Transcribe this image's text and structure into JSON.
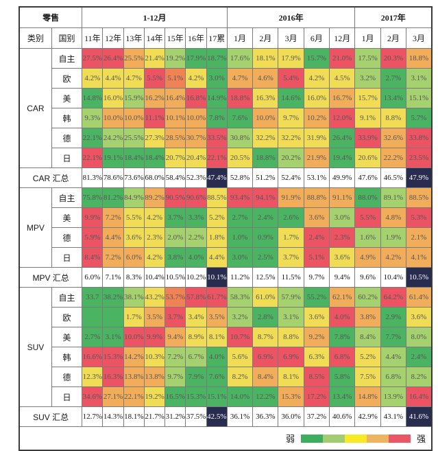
{
  "palette": {
    "g": "#4bb463",
    "lg": "#a5d16f",
    "y": "#f1dd55",
    "o": "#f2ad5b",
    "or": "#f08356",
    "r": "#ec5363",
    "dark": "#282c4e",
    "white": "#ffffff"
  },
  "legend": {
    "weak_label": "弱",
    "strong_label": "强",
    "colors": [
      "#3dae5d",
      "#a3cc72",
      "#f7ea25",
      "#efb45f",
      "#ea5766"
    ]
  },
  "chart_data": {
    "type": "heatmap",
    "title": "零售",
    "corner_label": "零售",
    "group_headers": [
      {
        "label": "零售",
        "span": 2
      },
      {
        "label": "1-12月",
        "span": 7
      },
      {
        "label": "2016年",
        "span": 5
      },
      {
        "label": "2017年",
        "span": 3
      }
    ],
    "sub_headers": [
      "类别",
      "国别",
      "11年",
      "12年",
      "13年",
      "14年",
      "15年",
      "16年",
      "17累",
      "1月",
      "2月",
      "3月",
      "6月",
      "12月",
      "1月",
      "2月",
      "3月"
    ],
    "groups": [
      {
        "name": "CAR",
        "rows": [
          {
            "label": "自主",
            "values": [
              "27.5%",
              "26.4%",
              "25.5%",
              "21.4%",
              "19.2%",
              "17.9%",
              "18.7%",
              "17.6%",
              "18.1%",
              "17.9%",
              "15.7%",
              "21.0%",
              "17.5%",
              "20.3%",
              "18.8%"
            ],
            "colors": [
              "r",
              "r",
              "o",
              "y",
              "lg",
              "g",
              "g",
              "lg",
              "y",
              "y",
              "g",
              "r",
              "lg",
              "r",
              "o"
            ]
          },
          {
            "label": "欧",
            "values": [
              "4.2%",
              "4.4%",
              "4.7%",
              "5.5%",
              "5.1%",
              "4.2%",
              "3.0%",
              "4.7%",
              "4.6%",
              "5.4%",
              "4.2%",
              "4.5%",
              "3.2%",
              "2.7%",
              "3.1%"
            ],
            "colors": [
              "y",
              "y",
              "y",
              "r",
              "or",
              "y",
              "g",
              "o",
              "o",
              "r",
              "y",
              "y",
              "lg",
              "g",
              "lg"
            ]
          },
          {
            "label": "美",
            "values": [
              "14.8%",
              "16.0%",
              "15.9%",
              "16.2%",
              "16.4%",
              "16.8%",
              "14.9%",
              "18.8%",
              "16.3%",
              "14.6%",
              "16.0%",
              "16.7%",
              "15.7%",
              "13.4%",
              "15.1%"
            ],
            "colors": [
              "g",
              "y",
              "lg",
              "o",
              "o",
              "r",
              "g",
              "r",
              "y",
              "g",
              "y",
              "o",
              "y",
              "g",
              "lg"
            ]
          },
          {
            "label": "韩",
            "values": [
              "9.3%",
              "10.0%",
              "10.0%",
              "11.1%",
              "10.1%",
              "10.0%",
              "7.8%",
              "7.6%",
              "10.0%",
              "9.7%",
              "10.2%",
              "12.0%",
              "9.1%",
              "8.8%",
              "5.7%"
            ],
            "colors": [
              "lg",
              "o",
              "o",
              "r",
              "o",
              "o",
              "g",
              "g",
              "o",
              "y",
              "o",
              "r",
              "y",
              "y",
              "g"
            ]
          },
          {
            "label": "德",
            "values": [
              "22.1%",
              "24.2%",
              "25.5%",
              "27.3%",
              "28.5%",
              "30.7%",
              "33.5%",
              "30.8%",
              "32.2%",
              "32.2%",
              "31.9%",
              "26.4%",
              "33.9%",
              "32.6%",
              "33.8%"
            ],
            "colors": [
              "g",
              "lg",
              "lg",
              "y",
              "o",
              "o",
              "r",
              "lg",
              "y",
              "y",
              "y",
              "g",
              "r",
              "o",
              "r"
            ]
          },
          {
            "label": "日",
            "values": [
              "22.1%",
              "19.1%",
              "18.4%",
              "18.4%",
              "20.7%",
              "20.4%",
              "22.1%",
              "20.5%",
              "18.8%",
              "20.2%",
              "21.9%",
              "19.4%",
              "20.6%",
              "22.2%",
              "23.5%"
            ],
            "colors": [
              "r",
              "g",
              "g",
              "g",
              "y",
              "y",
              "r",
              "y",
              "g",
              "lg",
              "o",
              "g",
              "y",
              "o",
              "r"
            ]
          }
        ],
        "total": {
          "label": "CAR 汇总",
          "values": [
            "81.3%",
            "78.6%",
            "73.6%",
            "68.0%",
            "58.4%",
            "52.3%",
            "47.4%",
            "52.8%",
            "51.2%",
            "52.4%",
            "53.1%",
            "49.9%",
            "47.6%",
            "46.5%",
            "47.9%"
          ],
          "dark_columns": [
            6,
            14
          ]
        }
      },
      {
        "name": "MPV",
        "rows": [
          {
            "label": "自主",
            "values": [
              "75.8%",
              "81.2%",
              "84.9%",
              "89.2%",
              "90.5%",
              "90.6%",
              "88.5%",
              "93.4%",
              "94.1%",
              "91.9%",
              "88.8%",
              "91.1%",
              "88.0%",
              "89.1%",
              "88.5%"
            ],
            "colors": [
              "g",
              "g",
              "lg",
              "o",
              "r",
              "r",
              "y",
              "r",
              "r",
              "o",
              "o",
              "o",
              "g",
              "lg",
              "o"
            ]
          },
          {
            "label": "美",
            "values": [
              "9.9%",
              "7.2%",
              "5.5%",
              "4.2%",
              "3.7%",
              "3.3%",
              "5.2%",
              "2.7%",
              "2.4%",
              "2.6%",
              "3.6%",
              "3.0%",
              "5.5%",
              "4.8%",
              "5.3%"
            ],
            "colors": [
              "r",
              "o",
              "y",
              "y",
              "g",
              "g",
              "y",
              "g",
              "g",
              "g",
              "o",
              "lg",
              "r",
              "o",
              "r"
            ]
          },
          {
            "label": "德",
            "values": [
              "5.9%",
              "4.4%",
              "3.6%",
              "2.3%",
              "2.0%",
              "2.2%",
              "1.8%",
              "1.0%",
              "0.9%",
              "1.7%",
              "2.4%",
              "2.3%",
              "1.6%",
              "1.9%",
              "2.1%"
            ],
            "colors": [
              "r",
              "o",
              "y",
              "y",
              "lg",
              "lg",
              "y",
              "g",
              "g",
              "y",
              "r",
              "r",
              "lg",
              "lg",
              "o"
            ]
          },
          {
            "label": "日",
            "values": [
              "8.4%",
              "7.2%",
              "6.0%",
              "4.2%",
              "3.8%",
              "4.0%",
              "4.4%",
              "3.0%",
              "2.5%",
              "3.7%",
              "5.1%",
              "3.6%",
              "4.9%",
              "4.2%",
              "4.1%"
            ],
            "colors": [
              "r",
              "o",
              "o",
              "y",
              "g",
              "g",
              "y",
              "g",
              "g",
              "y",
              "r",
              "y",
              "o",
              "o",
              "o"
            ]
          }
        ],
        "total": {
          "label": "MPV 汇总",
          "values": [
            "6.0%",
            "7.1%",
            "8.3%",
            "10.4%",
            "10.5%",
            "10.2%",
            "10.1%",
            "11.2%",
            "12.5%",
            "11.5%",
            "9.7%",
            "9.4%",
            "9.6%",
            "10.4%",
            "10.5%"
          ],
          "dark_columns": [
            6,
            14
          ]
        }
      },
      {
        "name": "SUV",
        "rows": [
          {
            "label": "自主",
            "values": [
              "33.7",
              "38.2%",
              "38.1%",
              "43.2%",
              "53.7%",
              "57.8%",
              "61.7%",
              "58.3%",
              "61.0%",
              "57.9%",
              "55.2%",
              "62.1%",
              "60.2%",
              "64.2%",
              "61.4%"
            ],
            "colors": [
              "g",
              "g",
              "lg",
              "y",
              "or",
              "r",
              "r",
              "lg",
              "y",
              "lg",
              "g",
              "o",
              "lg",
              "r",
              "o"
            ]
          },
          {
            "label": "欧",
            "values": [
              "",
              "",
              "1.7%",
              "3.5%",
              "3.7%",
              "3.4%",
              "3.5%",
              "3.2%",
              "2.8%",
              "3.1%",
              "3.6%",
              "4.0%",
              "3.8%",
              "2.9%",
              "3.6%"
            ],
            "colors": [
              "g",
              "g",
              "y",
              "o",
              "r",
              "y",
              "o",
              "lg",
              "g",
              "lg",
              "y",
              "r",
              "o",
              "g",
              "y"
            ]
          },
          {
            "label": "美",
            "values": [
              "2.7%",
              "3.1%",
              "10.0%",
              "9.9%",
              "9.4%",
              "8.9%",
              "8.1%",
              "10.7%",
              "8.7%",
              "8.8%",
              "9.2%",
              "7.8%",
              "8.4%",
              "7.7%",
              "8.0%"
            ],
            "colors": [
              "g",
              "g",
              "r",
              "r",
              "o",
              "y",
              "y",
              "r",
              "y",
              "y",
              "o",
              "g",
              "lg",
              "g",
              "lg"
            ]
          },
          {
            "label": "韩",
            "values": [
              "16.6%",
              "15.3%",
              "14.2%",
              "10.3%",
              "7.2%",
              "6.7%",
              "4.0%",
              "5.6%",
              "6.9%",
              "6.9%",
              "6.3%",
              "6.8%",
              "5.2%",
              "4.4%",
              "2.4%"
            ],
            "colors": [
              "r",
              "r",
              "o",
              "y",
              "lg",
              "lg",
              "g",
              "y",
              "r",
              "r",
              "y",
              "r",
              "y",
              "lg",
              "g"
            ]
          },
          {
            "label": "德",
            "values": [
              "12.3%",
              "16.3%",
              "13.8%",
              "13.8%",
              "9.7%",
              "7.9%",
              "7.6%",
              "8.2%",
              "8.4%",
              "8.1%",
              "8.5%",
              "5.8%",
              "7.5%",
              "6.8%",
              "8.2%"
            ],
            "colors": [
              "y",
              "r",
              "o",
              "o",
              "lg",
              "g",
              "g",
              "y",
              "o",
              "y",
              "r",
              "g",
              "y",
              "lg",
              "lg"
            ]
          },
          {
            "label": "日",
            "values": [
              "34.6%",
              "27.1%",
              "22.1%",
              "19.2%",
              "16.5%",
              "15.3%",
              "15.1%",
              "14.0%",
              "12.2%",
              "15.3%",
              "17.2%",
              "13.4%",
              "14.8%",
              "13.9%",
              "16.4%"
            ],
            "colors": [
              "r",
              "o",
              "o",
              "y",
              "g",
              "g",
              "g",
              "g",
              "g",
              "o",
              "r",
              "g",
              "o",
              "lg",
              "r"
            ]
          }
        ],
        "total": {
          "label": "SUV 汇总",
          "values": [
            "12.7%",
            "14.3%",
            "18.1%",
            "21.7%",
            "31.2%",
            "37.5%",
            "42.5%",
            "36.1%",
            "36.3%",
            "36.0%",
            "37.2%",
            "40.6%",
            "42.9%",
            "43.1%",
            "41.6%"
          ],
          "dark_columns": [
            6,
            14
          ]
        }
      }
    ]
  }
}
